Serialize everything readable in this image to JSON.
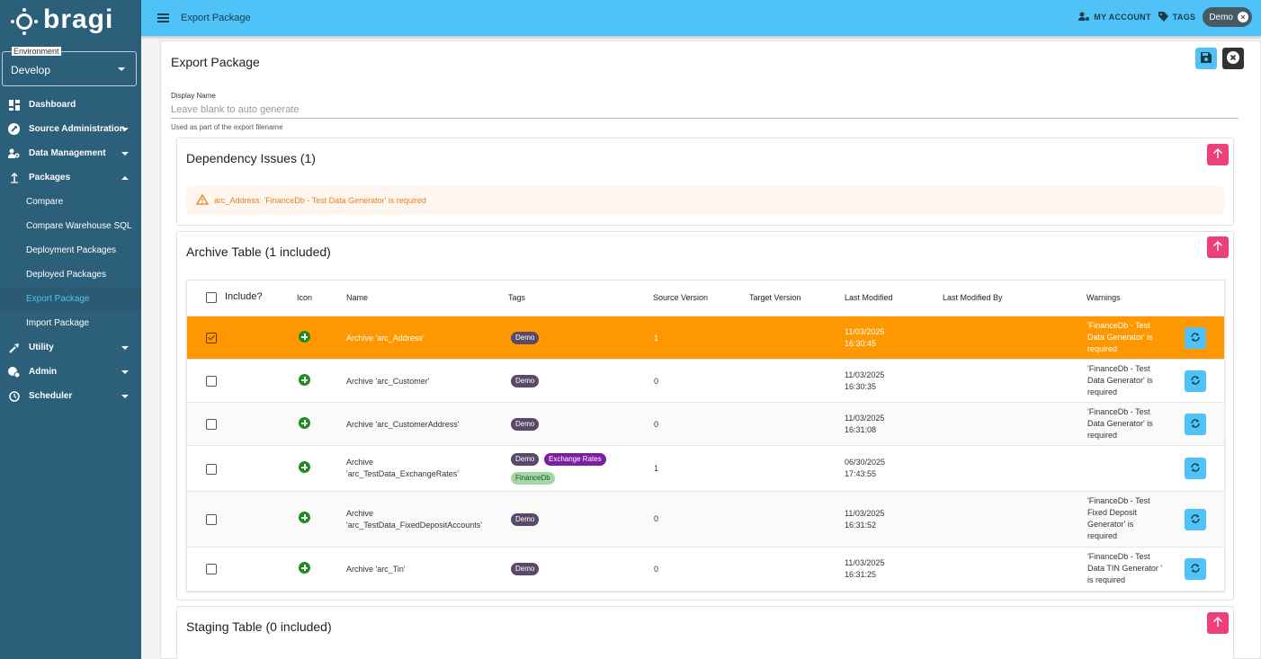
{
  "brand": {
    "name": "bragi"
  },
  "environment": {
    "label": "Environment",
    "value": "Develop"
  },
  "nav": [
    {
      "label": "Dashboard",
      "icon": "dashboard-icon"
    },
    {
      "label": "Source Administration",
      "icon": "wrench-icon"
    },
    {
      "label": "Data Management",
      "icon": "people-gear-icon"
    },
    {
      "label": "Packages",
      "icon": "upload-arrow-icon"
    },
    {
      "label": "Utility",
      "icon": "tool-icon"
    },
    {
      "label": "Admin",
      "icon": "admin-icon"
    },
    {
      "label": "Scheduler",
      "icon": "clock-icon"
    }
  ],
  "packages_sub": [
    "Compare",
    "Compare Warehouse SQL",
    "Deployment Packages",
    "Deployed Packages",
    "Export Package",
    "Import Package"
  ],
  "topbar": {
    "title": "Export Package",
    "my_account": "MY ACCOUNT",
    "tags": "TAGS",
    "chip": "Demo"
  },
  "main": {
    "title": "Export Package",
    "display_name_label": "Display Name",
    "display_name_placeholder": "Leave blank to auto generate",
    "display_name_help": "Used as part of the export filename"
  },
  "dependency": {
    "title": "Dependency Issues (1)",
    "message": "arc_Address: 'FinanceDb - Test Data Generator' is required"
  },
  "archive": {
    "title": "Archive Table (1 included)",
    "headers": [
      "Include?",
      "Icon",
      "Name",
      "Tags",
      "Source Version",
      "Target Version",
      "Last Modified",
      "Last Modified By",
      "Warnings"
    ],
    "rows": [
      {
        "name": "Archive 'arc_Address'",
        "tags": [
          "Demo"
        ],
        "source": "1",
        "target": "",
        "modified": [
          "11/03/2025",
          "16:30:45"
        ],
        "warn": [
          "'FinanceDb - Test",
          "Data Generator' is",
          "required"
        ],
        "checked": true
      },
      {
        "name": "Archive 'arc_Customer'",
        "tags": [
          "Demo"
        ],
        "source": "0",
        "target": "",
        "modified": [
          "11/03/2025",
          "16:30:35"
        ],
        "warn": [
          "'FinanceDb - Test",
          "Data Generator' is",
          "required"
        ],
        "checked": false
      },
      {
        "name": "Archive 'arc_CustomerAddress'",
        "tags": [
          "Demo"
        ],
        "source": "0",
        "target": "",
        "modified": [
          "11/03/2025",
          "16:31:08"
        ],
        "warn": [
          "'FinanceDb - Test",
          "Data Generator' is",
          "required"
        ],
        "checked": false
      },
      {
        "name": [
          "Archive",
          "'arc_TestData_ExchangeRates'"
        ],
        "tags": [
          "Demo",
          "Exchange Rates",
          "FinanceDb"
        ],
        "source": "1",
        "target": "",
        "modified": [
          "06/30/2025",
          "17:43:55"
        ],
        "warn": [],
        "checked": false
      },
      {
        "name": [
          "Archive",
          "'arc_TestData_FixedDepositAccounts'"
        ],
        "tags": [
          "Demo"
        ],
        "source": "0",
        "target": "",
        "modified": [
          "11/03/2025",
          "16:31:52"
        ],
        "warn": [
          "'FinanceDb - Test",
          "Fixed Deposit",
          "Generator' is",
          "required"
        ],
        "checked": false
      },
      {
        "name": "Archive 'arc_Tin'",
        "tags": [
          "Demo"
        ],
        "source": "0",
        "target": "",
        "modified": [
          "11/03/2025",
          "16:31:25"
        ],
        "warn": [
          "'FinanceDb - Test",
          "Data TIN Generator '",
          "is required"
        ],
        "checked": false
      }
    ]
  },
  "staging": {
    "title": "Staging Table (0 included)"
  },
  "colors": {
    "sidebar": "#2c5f7a",
    "topbar": "#4fc3f7",
    "selected_row": "#ff9800",
    "up_button": "#ec407a",
    "warning": "#e67e22"
  }
}
